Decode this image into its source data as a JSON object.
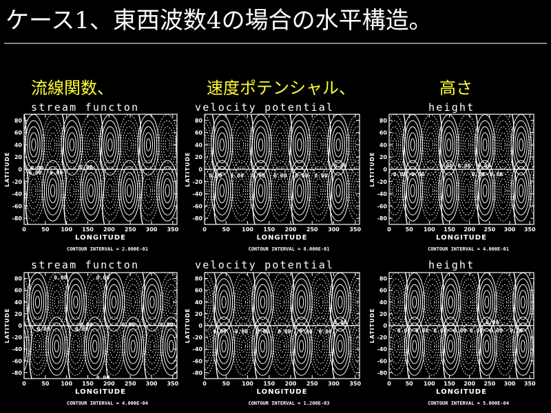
{
  "slide": {
    "title": "ケース1、東西波数4の場合の水平構造。",
    "headings": [
      "流線関数、",
      "速度ポテンシャル、",
      "高さ"
    ],
    "colors": {
      "background": "#000000",
      "heading": "#ffff33",
      "lines": "#ffffff",
      "rule": "#8a8a8a"
    }
  },
  "chart_data": [
    {
      "type": "contour",
      "title": "stream functon",
      "xlabel": "LONGITUDE",
      "ylabel": "LATITUDE",
      "xlim": [
        0,
        360
      ],
      "ylim": [
        -90,
        90
      ],
      "xticks": [
        0,
        50,
        100,
        150,
        200,
        250,
        300,
        350
      ],
      "yticks": [
        -80,
        -60,
        -40,
        -20,
        0,
        20,
        40,
        60,
        80
      ],
      "wavenumber": 4,
      "symmetry": "antisymmetric",
      "phase": 0,
      "contour_interval": "CONTOUR INTERVAL = 2.000E-01",
      "zero_labels": [
        {
          "lon": 15,
          "lat": 2
        },
        {
          "lon": 130,
          "lat": 4
        },
        {
          "lon": 10,
          "lat": -5
        },
        {
          "lon": 60,
          "lat": -5
        }
      ]
    },
    {
      "type": "contour",
      "title": "velocity potential",
      "xlabel": "LONGITUDE",
      "ylabel": "LATITUDE",
      "xlim": [
        0,
        360
      ],
      "ylim": [
        -90,
        90
      ],
      "xticks": [
        0,
        50,
        100,
        150,
        200,
        250,
        300,
        350
      ],
      "yticks": [
        -80,
        -60,
        -40,
        -20,
        0,
        20,
        40,
        60,
        80
      ],
      "wavenumber": 4,
      "symmetry": "symmetric",
      "phase": 0.4,
      "contour_interval": "CONTOUR INTERVAL = 8.000E-01",
      "zero_labels": [
        {
          "lon": 300,
          "lat": 6
        },
        {
          "lon": 10,
          "lat": -10
        },
        {
          "lon": 60,
          "lat": -10
        },
        {
          "lon": 110,
          "lat": -10
        },
        {
          "lon": 160,
          "lat": -10
        },
        {
          "lon": 210,
          "lat": -10
        },
        {
          "lon": 255,
          "lat": -10
        }
      ]
    },
    {
      "type": "contour",
      "title": "height",
      "xlabel": "LONGITUDE",
      "ylabel": "LATITUDE",
      "xlim": [
        0,
        360
      ],
      "ylim": [
        -90,
        90
      ],
      "xticks": [
        0,
        50,
        100,
        150,
        200,
        250,
        300,
        350
      ],
      "yticks": [
        -80,
        -60,
        -40,
        -20,
        0,
        20,
        40,
        60,
        80
      ],
      "wavenumber": 4,
      "symmetry": "symmetric",
      "phase": 0.8,
      "contour_interval": "CONTOUR INTERVAL = 4.000E-01",
      "zero_labels": [
        {
          "lon": 125,
          "lat": 6
        },
        {
          "lon": 170,
          "lat": 6
        },
        {
          "lon": 220,
          "lat": 6
        },
        {
          "lon": 10,
          "lat": -8
        },
        {
          "lon": 55,
          "lat": -8
        },
        {
          "lon": 205,
          "lat": -8
        },
        {
          "lon": 250,
          "lat": -8
        }
      ]
    },
    {
      "type": "contour",
      "title": "stream functon",
      "xlabel": "LONGITUDE",
      "ylabel": "LATITUDE",
      "xlim": [
        0,
        360
      ],
      "ylim": [
        -90,
        90
      ],
      "xticks": [
        0,
        50,
        100,
        150,
        200,
        250,
        300,
        350
      ],
      "yticks": [
        -80,
        -60,
        -40,
        -20,
        0,
        20,
        40,
        60,
        80
      ],
      "wavenumber": 4,
      "symmetry": "antisymmetric",
      "phase": 0.2,
      "contour_interval": "CONTOUR INTERVAL = 4.000E-04",
      "zero_labels": [
        {
          "lon": 70,
          "lat": 82
        },
        {
          "lon": 170,
          "lat": 82
        },
        {
          "lon": 130,
          "lat": 2
        },
        {
          "lon": 230,
          "lat": 2
        },
        {
          "lon": 320,
          "lat": 2
        },
        {
          "lon": 30,
          "lat": -5
        },
        {
          "lon": 120,
          "lat": -5
        },
        {
          "lon": 170,
          "lat": -88
        }
      ]
    },
    {
      "type": "contour",
      "title": "velocity potential",
      "xlabel": "LONGITUDE",
      "ylabel": "LATITUDE",
      "xlim": [
        0,
        360
      ],
      "ylim": [
        -90,
        90
      ],
      "xticks": [
        0,
        50,
        100,
        150,
        200,
        250,
        300,
        350
      ],
      "yticks": [
        -80,
        -60,
        -40,
        -20,
        0,
        20,
        40,
        60,
        80
      ],
      "wavenumber": 4,
      "symmetry": "symmetric",
      "phase": 0.5,
      "contour_interval": "CONTOUR INTERVAL = 1.200E-03",
      "zero_labels": [
        {
          "lon": 300,
          "lat": 6
        },
        {
          "lon": 20,
          "lat": -10
        },
        {
          "lon": 70,
          "lat": -10
        },
        {
          "lon": 120,
          "lat": -10
        },
        {
          "lon": 170,
          "lat": -10
        },
        {
          "lon": 220,
          "lat": -10
        },
        {
          "lon": 265,
          "lat": -10
        }
      ]
    },
    {
      "type": "contour",
      "title": "height",
      "xlabel": "LONGITUDE",
      "ylabel": "LATITUDE",
      "xlim": [
        0,
        360
      ],
      "ylim": [
        -90,
        90
      ],
      "xticks": [
        0,
        50,
        100,
        150,
        200,
        250,
        300,
        350
      ],
      "yticks": [
        -80,
        -60,
        -40,
        -20,
        0,
        20,
        40,
        60,
        80
      ],
      "wavenumber": 4,
      "symmetry": "symmetric",
      "phase": 0.9,
      "contour_interval": "CONTOUR INTERVAL = 5.000E-04",
      "zero_labels": [
        {
          "lon": 240,
          "lat": 6
        },
        {
          "lon": 20,
          "lat": -8
        },
        {
          "lon": 65,
          "lat": -8
        },
        {
          "lon": 110,
          "lat": -8
        },
        {
          "lon": 160,
          "lat": -8
        },
        {
          "lon": 200,
          "lat": -8
        },
        {
          "lon": 250,
          "lat": -8
        },
        {
          "lon": 300,
          "lat": -8
        }
      ]
    }
  ]
}
